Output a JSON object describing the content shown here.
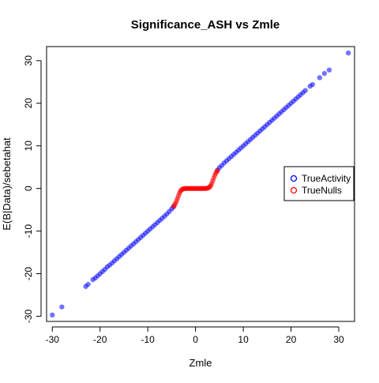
{
  "chart_data": {
    "type": "scatter",
    "title": "Significance_ASH vs Zmle",
    "xlabel": "Zmle",
    "ylabel": "E(B|Data)/sebetahat",
    "xlim": [
      -31.2,
      33.3
    ],
    "ylim": [
      -31.2,
      33.3
    ],
    "x_ticks": [
      -30,
      -20,
      -10,
      0,
      10,
      20,
      30
    ],
    "y_ticks": [
      -30,
      -20,
      -10,
      0,
      10,
      20,
      30
    ],
    "grid": false,
    "legend_position": "right",
    "series": [
      {
        "name": "TrueActivity",
        "color": "#0000ff",
        "points": [
          [
            -30,
            -29.7
          ],
          [
            -28,
            -27.8
          ],
          [
            -23,
            -23
          ],
          [
            -22.5,
            -22.5
          ],
          [
            -21.5,
            -21.4
          ],
          [
            -21,
            -21
          ],
          [
            -20.5,
            -20.5
          ],
          [
            -20,
            -20
          ],
          [
            -19.5,
            -19.5
          ],
          [
            -19,
            -19
          ],
          [
            -18.5,
            -18.4
          ],
          [
            -18,
            -18
          ],
          [
            -17.5,
            -17.5
          ],
          [
            -17,
            -17
          ],
          [
            -16.5,
            -16.5
          ],
          [
            -16,
            -16
          ],
          [
            -15.5,
            -15.5
          ],
          [
            -15,
            -15
          ],
          [
            -14.5,
            -14.5
          ],
          [
            -14,
            -14
          ],
          [
            -13.5,
            -13.5
          ],
          [
            -13,
            -13
          ],
          [
            -12.5,
            -12.5
          ],
          [
            -12,
            -12
          ],
          [
            -11.5,
            -11.5
          ],
          [
            -11,
            -11
          ],
          [
            -10.5,
            -10.5
          ],
          [
            -10,
            -10
          ],
          [
            -9.5,
            -9.5
          ],
          [
            -9,
            -9
          ],
          [
            -8.5,
            -8.5
          ],
          [
            -8,
            -8
          ],
          [
            -7.5,
            -7.5
          ],
          [
            -7,
            -7
          ],
          [
            -6.5,
            -6.5
          ],
          [
            -6,
            -6
          ],
          [
            -5.5,
            -5.4
          ],
          [
            -5,
            -4.8
          ],
          [
            -4.6,
            -4.3
          ],
          [
            4.6,
            4.3
          ],
          [
            5,
            4.9
          ],
          [
            5.5,
            5.4
          ],
          [
            6,
            6
          ],
          [
            6.5,
            6.5
          ],
          [
            7,
            7
          ],
          [
            7.5,
            7.5
          ],
          [
            8,
            8
          ],
          [
            8.5,
            8.5
          ],
          [
            9,
            9
          ],
          [
            9.5,
            9.5
          ],
          [
            10,
            10
          ],
          [
            10.5,
            10.5
          ],
          [
            11,
            11
          ],
          [
            11.5,
            11.5
          ],
          [
            12,
            12
          ],
          [
            12.5,
            12.5
          ],
          [
            13,
            13
          ],
          [
            13.5,
            13.5
          ],
          [
            14,
            14
          ],
          [
            14.5,
            14.5
          ],
          [
            15,
            15
          ],
          [
            15.5,
            15.5
          ],
          [
            16,
            16
          ],
          [
            16.5,
            16.5
          ],
          [
            17,
            17
          ],
          [
            17.5,
            17.5
          ],
          [
            18,
            18
          ],
          [
            18.5,
            18.5
          ],
          [
            19,
            19
          ],
          [
            19.5,
            19.5
          ],
          [
            20,
            20
          ],
          [
            20.5,
            20.5
          ],
          [
            21,
            21
          ],
          [
            21.5,
            21.5
          ],
          [
            22,
            22
          ],
          [
            22.5,
            22.5
          ],
          [
            23,
            23
          ],
          [
            24,
            24
          ],
          [
            24.5,
            24.4
          ],
          [
            26,
            26
          ],
          [
            27,
            27
          ],
          [
            28,
            27.8
          ],
          [
            32,
            31.8
          ]
        ]
      },
      {
        "name": "TrueNulls",
        "color": "#ff0000",
        "points": [
          [
            -4.6,
            -4.2
          ],
          [
            -4.4,
            -3.9
          ],
          [
            -4.2,
            -3.5
          ],
          [
            -4.0,
            -3.0
          ],
          [
            -3.8,
            -2.4
          ],
          [
            -3.6,
            -1.8
          ],
          [
            -3.4,
            -1.2
          ],
          [
            -3.2,
            -0.7
          ],
          [
            -3.0,
            -0.4
          ],
          [
            -2.8,
            -0.2
          ],
          [
            -2.6,
            -0.1
          ],
          [
            -2.4,
            -0.05
          ],
          [
            -2.2,
            0
          ],
          [
            -2.0,
            0
          ],
          [
            -1.8,
            0
          ],
          [
            -1.6,
            0
          ],
          [
            -1.4,
            0
          ],
          [
            -1.2,
            0
          ],
          [
            -1.0,
            0
          ],
          [
            -0.8,
            0
          ],
          [
            -0.6,
            0
          ],
          [
            -0.4,
            0
          ],
          [
            -0.2,
            0
          ],
          [
            0,
            0
          ],
          [
            0.2,
            0
          ],
          [
            0.4,
            0
          ],
          [
            0.6,
            0
          ],
          [
            0.8,
            0
          ],
          [
            1.0,
            0
          ],
          [
            1.2,
            0
          ],
          [
            1.4,
            0
          ],
          [
            1.6,
            0
          ],
          [
            1.8,
            0
          ],
          [
            2.0,
            0
          ],
          [
            2.2,
            0
          ],
          [
            2.4,
            0.05
          ],
          [
            2.6,
            0.1
          ],
          [
            2.8,
            0.2
          ],
          [
            3.0,
            0.4
          ],
          [
            3.2,
            0.7
          ],
          [
            3.4,
            1.2
          ],
          [
            3.6,
            1.8
          ],
          [
            3.8,
            2.4
          ],
          [
            4.0,
            3.0
          ],
          [
            4.2,
            3.5
          ],
          [
            4.4,
            3.9
          ],
          [
            4.6,
            4.2
          ]
        ]
      }
    ]
  }
}
